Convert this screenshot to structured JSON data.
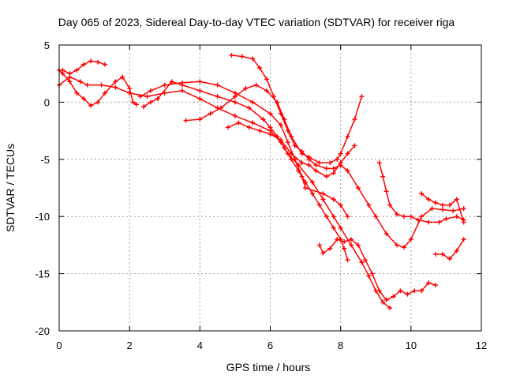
{
  "chart_data": {
    "type": "scatter",
    "title": "Day 065 of 2023, Sidereal Day-to-day VTEC variation (SDTVAR) for receiver riga",
    "xlabel": "GPS time / hours",
    "ylabel": "SDTVAR / TECUs",
    "xlim": [
      0,
      12
    ],
    "ylim": [
      -20,
      5
    ],
    "x_ticks": [
      "0",
      "2",
      "4",
      "6",
      "8",
      "10",
      "12"
    ],
    "y_ticks": [
      "5",
      "0",
      "-5",
      "-10",
      "-15",
      "-20"
    ],
    "grid": true,
    "marker": "+",
    "color": "#ff0000",
    "series": [
      {
        "points": [
          [
            0.0,
            1.5
          ],
          [
            0.3,
            2.2
          ],
          [
            0.6,
            1.8
          ],
          [
            0.8,
            1.5
          ],
          [
            1.2,
            1.5
          ],
          [
            1.6,
            1.3
          ],
          [
            2.0,
            0.8
          ],
          [
            2.5,
            0.5
          ],
          [
            3.0,
            0.8
          ],
          [
            3.5,
            1.0
          ],
          [
            4.0,
            0.3
          ],
          [
            4.5,
            -0.5
          ],
          [
            5.0,
            -1.2
          ],
          [
            5.5,
            -1.8
          ],
          [
            6.0,
            -2.5
          ],
          [
            6.3,
            -3.5
          ],
          [
            6.5,
            -4.5
          ],
          [
            6.8,
            -5.5
          ],
          [
            7.2,
            -7.0
          ],
          [
            7.5,
            -8.5
          ],
          [
            7.8,
            -10.0
          ],
          [
            8.0,
            -11.0
          ],
          [
            8.3,
            -12.5
          ],
          [
            8.6,
            -14.0
          ],
          [
            8.8,
            -15.2
          ],
          [
            9.0,
            -16.5
          ],
          [
            9.2,
            -17.5
          ],
          [
            9.4,
            -18.0
          ]
        ]
      },
      {
        "points": [
          [
            0.0,
            2.8
          ],
          [
            0.1,
            2.5
          ],
          [
            0.3,
            1.8
          ],
          [
            0.5,
            0.8
          ],
          [
            0.7,
            0.3
          ],
          [
            0.9,
            -0.3
          ],
          [
            1.1,
            0.0
          ],
          [
            1.3,
            0.8
          ],
          [
            1.6,
            1.8
          ],
          [
            1.8,
            2.2
          ],
          [
            2.0,
            1.2
          ],
          [
            2.1,
            0.0
          ],
          [
            2.2,
            -0.2
          ]
        ]
      },
      {
        "points": [
          [
            0.1,
            2.8
          ],
          [
            0.3,
            2.5
          ],
          [
            0.5,
            2.8
          ],
          [
            0.7,
            3.3
          ],
          [
            0.9,
            3.6
          ],
          [
            1.1,
            3.5
          ],
          [
            1.3,
            3.3
          ]
        ]
      },
      {
        "points": [
          [
            2.3,
            0.5
          ],
          [
            2.6,
            1.0
          ],
          [
            3.0,
            1.5
          ],
          [
            3.5,
            1.7
          ],
          [
            4.0,
            1.8
          ],
          [
            4.5,
            1.5
          ],
          [
            5.0,
            0.8
          ],
          [
            5.5,
            0.0
          ],
          [
            6.0,
            -1.0
          ],
          [
            6.3,
            -2.0
          ],
          [
            6.5,
            -3.5
          ],
          [
            6.7,
            -5.0
          ],
          [
            6.9,
            -6.5
          ],
          [
            7.0,
            -7.5
          ],
          [
            7.5,
            -8.0
          ],
          [
            7.8,
            -8.5
          ],
          [
            8.0,
            -9.0
          ],
          [
            8.2,
            -10.0
          ]
        ]
      },
      {
        "points": [
          [
            2.4,
            -0.4
          ],
          [
            2.6,
            0.0
          ],
          [
            2.8,
            0.3
          ],
          [
            3.2,
            1.8
          ],
          [
            3.5,
            1.5
          ],
          [
            4.0,
            1.0
          ],
          [
            4.5,
            0.5
          ],
          [
            5.0,
            0.0
          ],
          [
            5.4,
            -0.5
          ],
          [
            5.8,
            -1.5
          ],
          [
            6.0,
            -2.2
          ],
          [
            6.2,
            -3.0
          ],
          [
            6.4,
            -4.0
          ],
          [
            6.6,
            -5.0
          ],
          [
            6.8,
            -6.0
          ],
          [
            7.0,
            -7.0
          ],
          [
            7.2,
            -8.0
          ],
          [
            7.4,
            -9.0
          ],
          [
            7.6,
            -10.0
          ],
          [
            7.8,
            -11.0
          ],
          [
            8.0,
            -12.0
          ],
          [
            8.1,
            -12.8
          ],
          [
            8.2,
            -13.8
          ]
        ]
      },
      {
        "points": [
          [
            3.6,
            -1.6
          ],
          [
            4.0,
            -1.5
          ],
          [
            4.3,
            -1.0
          ],
          [
            4.6,
            -0.5
          ],
          [
            5.0,
            0.5
          ],
          [
            5.3,
            1.2
          ],
          [
            5.6,
            1.5
          ],
          [
            5.9,
            1.0
          ],
          [
            6.2,
            0.0
          ],
          [
            6.4,
            -1.5
          ],
          [
            6.6,
            -3.0
          ],
          [
            6.9,
            -4.5
          ],
          [
            7.1,
            -4.8
          ],
          [
            7.4,
            -5.3
          ],
          [
            7.7,
            -5.3
          ],
          [
            7.9,
            -5.0
          ],
          [
            8.0,
            -4.5
          ],
          [
            8.2,
            -3.0
          ],
          [
            8.4,
            -1.5
          ],
          [
            8.6,
            0.5
          ]
        ]
      },
      {
        "points": [
          [
            4.9,
            4.1
          ],
          [
            5.2,
            4.0
          ],
          [
            5.5,
            3.8
          ],
          [
            5.7,
            3.0
          ],
          [
            5.9,
            2.0
          ],
          [
            6.1,
            0.5
          ],
          [
            6.3,
            -1.0
          ],
          [
            6.5,
            -2.5
          ],
          [
            6.7,
            -3.8
          ],
          [
            6.9,
            -4.3
          ],
          [
            7.1,
            -5.0
          ],
          [
            7.3,
            -5.5
          ],
          [
            7.6,
            -5.8
          ],
          [
            7.8,
            -5.8
          ],
          [
            8.0,
            -5.5
          ],
          [
            8.2,
            -6.0
          ],
          [
            8.5,
            -7.5
          ],
          [
            8.8,
            -9.0
          ],
          [
            9.0,
            -10.0
          ],
          [
            9.3,
            -11.5
          ],
          [
            9.6,
            -12.5
          ],
          [
            9.8,
            -12.7
          ],
          [
            10.0,
            -12.0
          ],
          [
            10.3,
            -10.0
          ],
          [
            10.6,
            -9.3
          ],
          [
            10.9,
            -9.4
          ],
          [
            11.2,
            -9.5
          ],
          [
            11.5,
            -9.3
          ]
        ]
      },
      {
        "points": [
          [
            4.8,
            -2.2
          ],
          [
            5.1,
            -1.8
          ],
          [
            5.4,
            -2.2
          ],
          [
            5.7,
            -2.5
          ],
          [
            6.0,
            -2.8
          ],
          [
            6.3,
            -3.3
          ],
          [
            6.6,
            -4.5
          ],
          [
            6.9,
            -5.3
          ],
          [
            7.1,
            -5.5
          ],
          [
            7.3,
            -6.0
          ],
          [
            7.6,
            -6.5
          ],
          [
            7.8,
            -6.2
          ],
          [
            8.0,
            -5.3
          ],
          [
            8.2,
            -4.5
          ],
          [
            8.4,
            -3.8
          ]
        ]
      },
      {
        "points": [
          [
            7.4,
            -12.5
          ],
          [
            7.5,
            -13.2
          ],
          [
            7.7,
            -12.8
          ],
          [
            7.9,
            -12.0
          ],
          [
            8.1,
            -12.2
          ],
          [
            8.3,
            -12.0
          ],
          [
            8.5,
            -12.5
          ],
          [
            8.7,
            -13.8
          ],
          [
            8.9,
            -15.0
          ],
          [
            9.1,
            -16.5
          ],
          [
            9.3,
            -17.3
          ],
          [
            9.5,
            -17.0
          ],
          [
            9.7,
            -16.5
          ],
          [
            9.9,
            -16.8
          ],
          [
            10.1,
            -16.5
          ],
          [
            10.3,
            -16.5
          ],
          [
            10.5,
            -15.8
          ],
          [
            10.7,
            -16.0
          ]
        ]
      },
      {
        "points": [
          [
            9.1,
            -5.3
          ],
          [
            9.2,
            -6.5
          ],
          [
            9.3,
            -7.8
          ],
          [
            9.4,
            -9.0
          ],
          [
            9.6,
            -9.8
          ],
          [
            9.8,
            -10.0
          ],
          [
            10.0,
            -10.0
          ],
          [
            10.2,
            -10.3
          ],
          [
            10.5,
            -10.5
          ],
          [
            10.8,
            -10.5
          ],
          [
            11.0,
            -10.2
          ],
          [
            11.3,
            -10.0
          ],
          [
            11.5,
            -10.3
          ]
        ]
      },
      {
        "points": [
          [
            10.3,
            -8.0
          ],
          [
            10.5,
            -8.5
          ],
          [
            10.7,
            -8.8
          ],
          [
            10.9,
            -9.0
          ],
          [
            11.1,
            -9.0
          ],
          [
            11.3,
            -8.5
          ],
          [
            11.5,
            -10.5
          ]
        ]
      },
      {
        "points": [
          [
            10.7,
            -13.3
          ],
          [
            10.9,
            -13.3
          ],
          [
            11.1,
            -13.7
          ],
          [
            11.3,
            -13.0
          ],
          [
            11.5,
            -12.0
          ]
        ]
      }
    ]
  }
}
